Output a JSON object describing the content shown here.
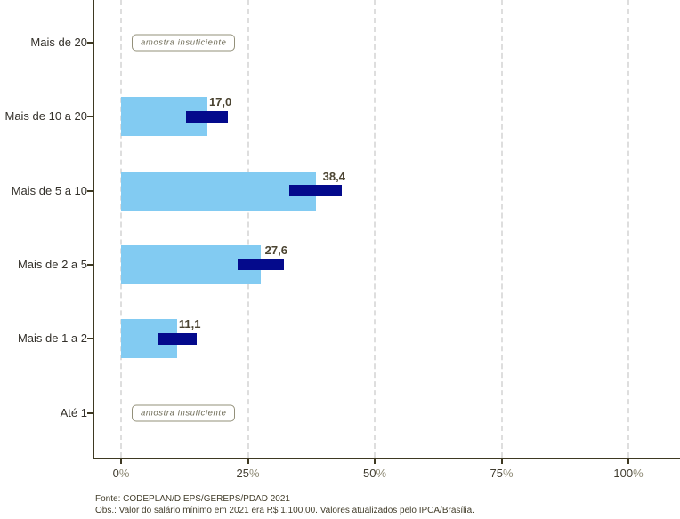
{
  "chart_data": {
    "type": "bar",
    "orientation": "horizontal",
    "title": "",
    "xlabel": "",
    "ylabel": "",
    "xlim": [
      0,
      110
    ],
    "grid": "vertical-dashed",
    "bar_color": "#82cbf2",
    "error_bar_color": "#040a8c",
    "axis_color": "#3e3922",
    "rows": [
      {
        "label": "Mais de 20",
        "insufficient": true
      },
      {
        "label": "Mais de 10 a 20",
        "value": 17.0,
        "value_label": "17,0",
        "ci_low": 12.8,
        "ci_high": 21.1
      },
      {
        "label": "Mais de 5 a 10",
        "value": 38.4,
        "value_label": "38,4",
        "ci_low": 33.2,
        "ci_high": 43.5
      },
      {
        "label": "Mais de 2 a 5",
        "value": 27.6,
        "value_label": "27,6",
        "ci_low": 23.0,
        "ci_high": 32.1
      },
      {
        "label": "Mais de 1 a 2",
        "value": 11.1,
        "value_label": "11,1",
        "ci_low": 7.2,
        "ci_high": 15.0
      },
      {
        "label": "Até 1",
        "insufficient": true
      }
    ],
    "insufficient_text": "amostra insuficiente",
    "x_axis": {
      "ticks": [
        {
          "num": "0",
          "suffix": "%",
          "value": 0
        },
        {
          "num": "25",
          "suffix": "%",
          "value": 25
        },
        {
          "num": "50",
          "suffix": "%",
          "value": 50
        },
        {
          "num": "75",
          "suffix": "%",
          "value": 75
        },
        {
          "num": "100",
          "suffix": "%",
          "value": 100
        }
      ]
    }
  },
  "footer": {
    "source": "Fonte: CODEPLAN/DIEPS/GEREPS/PDAD 2021",
    "note": "Obs.: Valor do salário mínimo em 2021 era R$ 1.100,00. Valores atualizados pelo IPCA/Brasília."
  }
}
